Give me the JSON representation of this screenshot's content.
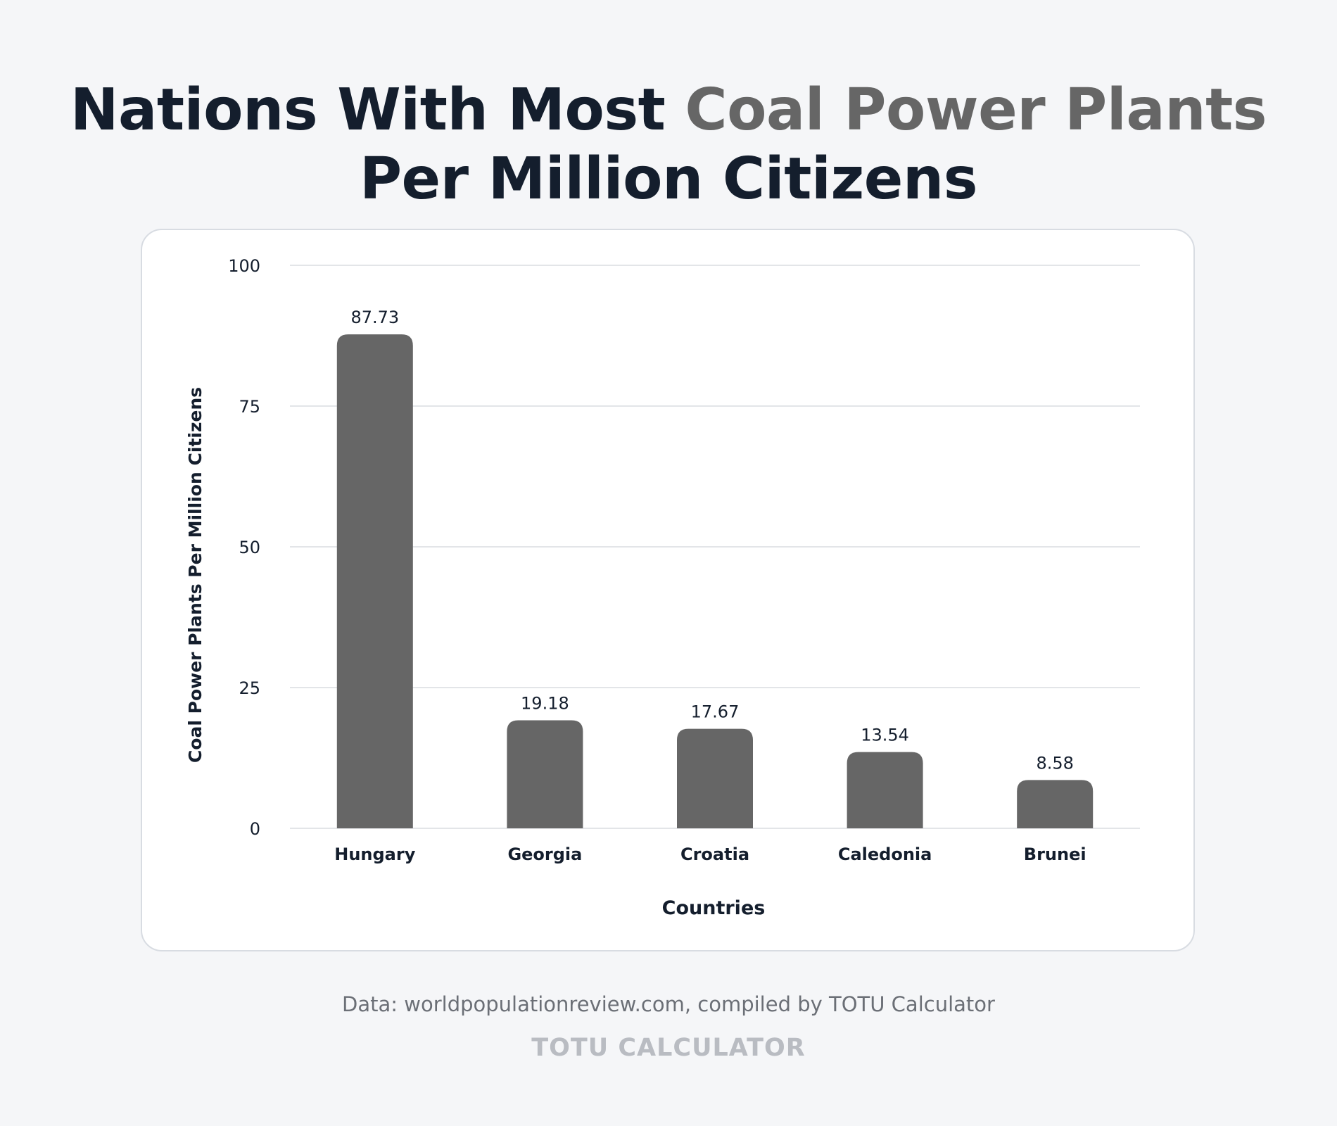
{
  "header": {
    "title_part1": "Nations With Most ",
    "title_accent": "Coal Power Plants",
    "title_part2": "Per Million Citizens"
  },
  "colors": {
    "bar": "#666666",
    "title": "#141e2d",
    "accent": "#666666",
    "grid": "#e3e5e8"
  },
  "chart_data": {
    "type": "bar",
    "title": "Nations With Most Coal Power Plants Per Million Citizens",
    "xlabel": "Countries",
    "ylabel": "Coal Power Plants Per Million Citizens",
    "categories": [
      "Hungary",
      "Georgia",
      "Croatia",
      "Caledonia",
      "Brunei"
    ],
    "values": [
      87.73,
      19.18,
      17.67,
      13.54,
      8.58
    ],
    "value_labels": [
      "87.73",
      "19.18",
      "17.67",
      "13.54",
      "8.58"
    ],
    "ylim": [
      0,
      100
    ],
    "yticks": [
      0,
      25,
      50,
      75,
      100
    ],
    "grid": true,
    "legend": "none"
  },
  "footer": {
    "source": "Data: worldpopulationreview.com, compiled by TOTU Calculator",
    "brand": "TOTU CALCULATOR"
  }
}
